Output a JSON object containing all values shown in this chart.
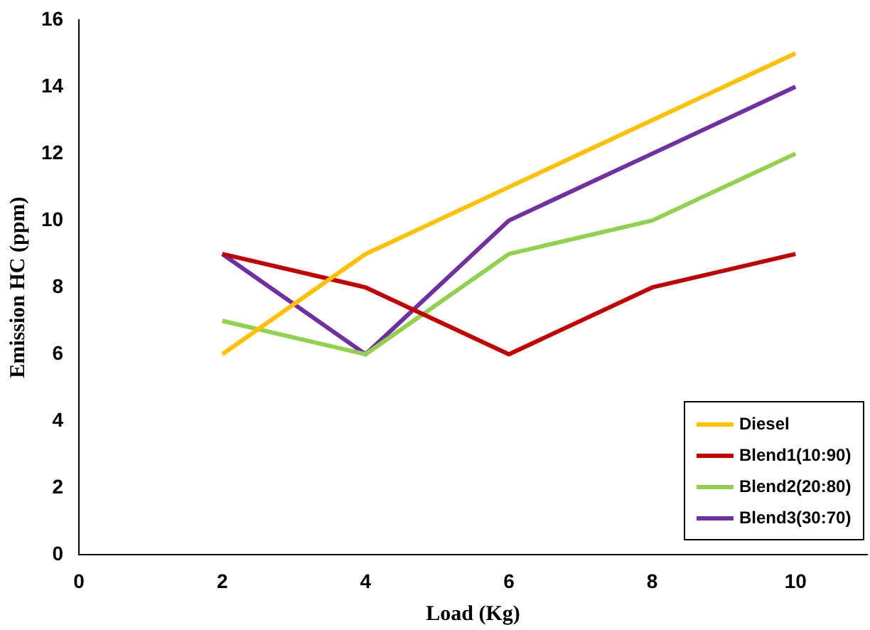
{
  "chart_data": {
    "type": "line",
    "xlabel": "Load (Kg)",
    "ylabel": "Emission HC (ppm)",
    "x": [
      2,
      4,
      6,
      8,
      10
    ],
    "series": [
      {
        "name": "Diesel",
        "color": "#ffc000",
        "values": [
          6,
          9,
          11,
          13,
          15
        ]
      },
      {
        "name": "Blend1(10:90)",
        "color": "#c00000",
        "values": [
          9,
          8,
          6,
          8,
          9
        ]
      },
      {
        "name": "Blend2(20:80)",
        "color": "#92d050",
        "values": [
          7,
          6,
          9,
          10,
          12
        ]
      },
      {
        "name": "Blend3(30:70)",
        "color": "#7030a0",
        "values": [
          9,
          6,
          10,
          12,
          14
        ]
      }
    ],
    "xlim": [
      0,
      11
    ],
    "xticks": [
      0,
      2,
      4,
      6,
      8,
      10
    ],
    "ylim": [
      0,
      16
    ],
    "yticks": [
      0,
      2,
      4,
      6,
      8,
      10,
      12,
      14,
      16
    ],
    "grid": false,
    "legend": "bottom right",
    "marker": "none",
    "line_style": "solid"
  }
}
